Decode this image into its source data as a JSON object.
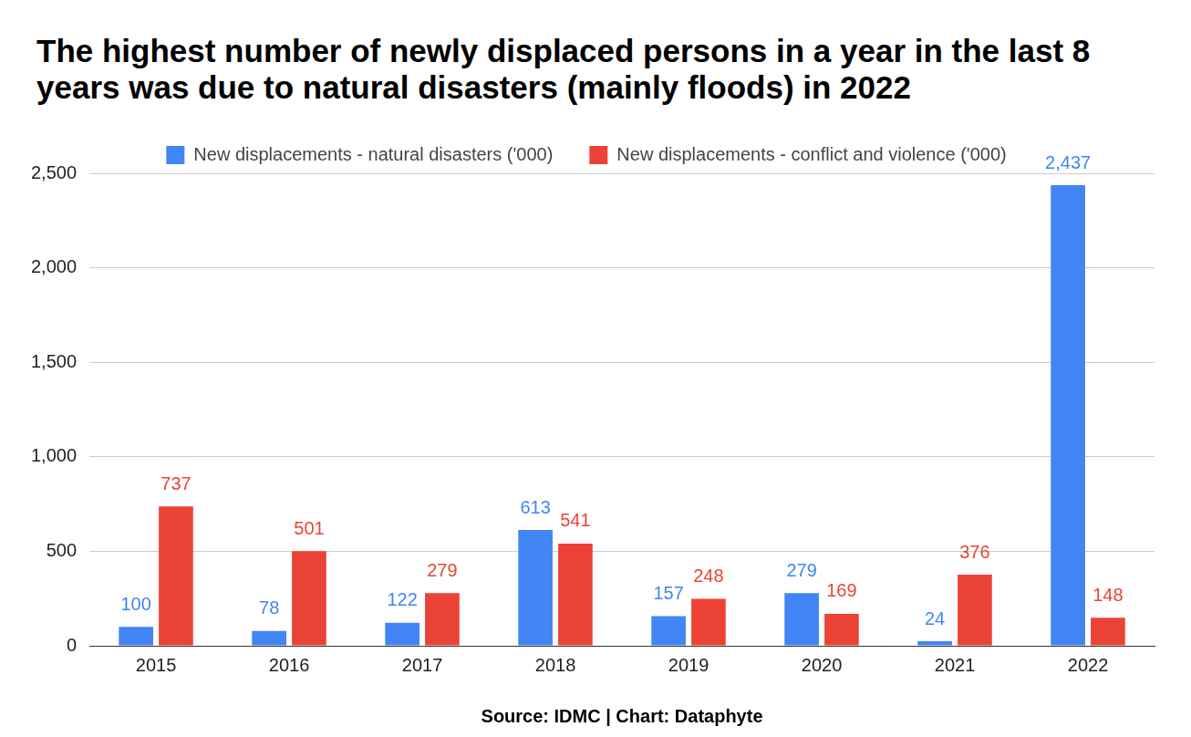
{
  "chart_data": {
    "type": "bar",
    "title": "The highest number of newly displaced persons in a year in the last 8 years was due to natural disasters (mainly floods) in 2022",
    "source": "Source: IDMC | Chart: Dataphyte",
    "categories": [
      "2015",
      "2016",
      "2017",
      "2018",
      "2019",
      "2020",
      "2021",
      "2022"
    ],
    "series": [
      {
        "name": "New displacements - natural disasters ('000)",
        "color": "#4285f4",
        "values": [
          100,
          78,
          122,
          613,
          157,
          279,
          24,
          2437
        ],
        "value_labels": [
          "100",
          "78",
          "122",
          "613",
          "157",
          "279",
          "24",
          "2,437"
        ]
      },
      {
        "name": "New displacements - conflict and violence ('000)",
        "color": "#ea4335",
        "values": [
          737,
          501,
          279,
          541,
          248,
          169,
          376,
          148
        ]
      }
    ],
    "ylim": [
      0,
      2500
    ],
    "yticks": [
      0,
      500,
      {
        "value": 1000,
        "label": "1,000"
      },
      {
        "value": 1500,
        "label": "1,500"
      },
      {
        "value": 2000,
        "label": "2,000"
      },
      {
        "value": 2500,
        "label": "2,500"
      }
    ],
    "grid": true,
    "legend": "top",
    "data_labels": true
  }
}
